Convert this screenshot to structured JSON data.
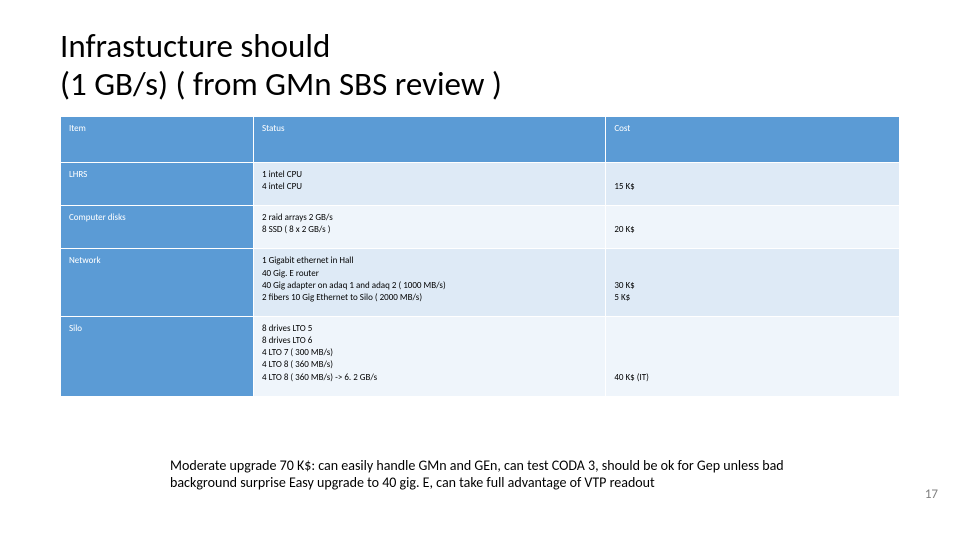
{
  "title_line1": "Infrastucture should",
  "title_line2": "(1 GB/s) ( from GMn SBS review )",
  "headers": {
    "item": "Item",
    "status": "Status",
    "cost": "Cost"
  },
  "rows": [
    {
      "item": "LHRS",
      "status": "1 intel CPU\n4 intel CPU",
      "cost": "15 K$"
    },
    {
      "item": "Computer disks",
      "status": "2 raid arrays 2 GB/s\n8 SSD ( 8 x 2 GB/s )",
      "cost": "20 K$"
    },
    {
      "item": "Network",
      "status": "1 Gigabit ethernet in Hall\n40 Gig. E router\n40 Gig adapter on adaq 1 and adaq 2 ( 1000 MB/s)\n2 fibers 10 Gig Ethernet to Silo ( 2000 MB/s)",
      "cost": "30 K$\n5 K$"
    },
    {
      "item": "Silo",
      "status": "8 drives LTO 5\n8 drives LTO 6\n4 LTO 7 ( 300 MB/s)\n4 LTO 8 ( 360 MB/s)\n4 LTO 8 ( 360 MB/s)  -> 6. 2 GB/s",
      "cost": "40 K$ (IT)"
    }
  ],
  "summary": "Moderate upgrade 70 K$: can easily handle GMn and GEn, can test CODA 3, should be ok for Gep unless bad background surprise\nEasy upgrade to 40 gig. E, can take full advantage of VTP readout",
  "page_number": "17",
  "colors": {
    "header_bg": "#5b9bd5",
    "band_a": "#deeaf6",
    "band_b": "#eff5fb"
  }
}
